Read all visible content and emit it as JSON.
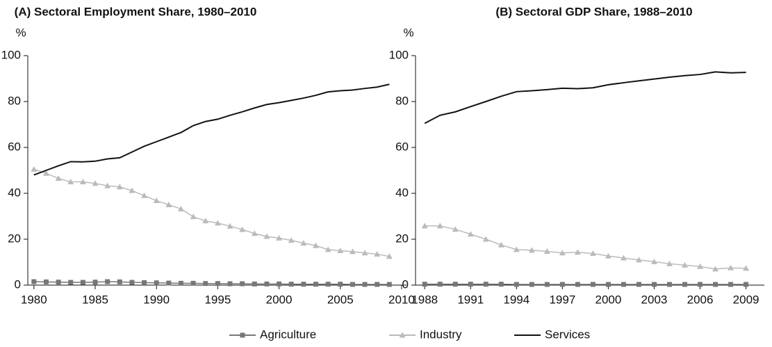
{
  "chart_data": [
    {
      "type": "line",
      "title": "(A) Sectoral Employment  Share, 1980–2010",
      "ylabel": "%",
      "x": [
        1980,
        1981,
        1982,
        1983,
        1984,
        1985,
        1986,
        1987,
        1988,
        1989,
        1990,
        1991,
        1992,
        1993,
        1994,
        1995,
        1996,
        1997,
        1998,
        1999,
        2000,
        2001,
        2002,
        2003,
        2004,
        2005,
        2006,
        2007,
        2008,
        2009
      ],
      "series": [
        {
          "name": "Agriculture",
          "color": "#777777",
          "marker": "square",
          "values": [
            1.5,
            1.4,
            1.3,
            1.2,
            1.2,
            1.3,
            1.5,
            1.4,
            1.2,
            1.1,
            1.0,
            0.9,
            0.8,
            0.8,
            0.7,
            0.7,
            0.6,
            0.6,
            0.5,
            0.5,
            0.5,
            0.4,
            0.4,
            0.4,
            0.4,
            0.4,
            0.3,
            0.3,
            0.3,
            0.3
          ]
        },
        {
          "name": "Industry",
          "color": "#bbbbbb",
          "marker": "triangle",
          "values": [
            50.5,
            48.7,
            46.5,
            45,
            45,
            44.3,
            43.3,
            42.8,
            41.2,
            39,
            36.8,
            35,
            33.2,
            29.8,
            28,
            27,
            25.7,
            24.2,
            22.5,
            21.2,
            20.5,
            19.5,
            18.3,
            17.2,
            15.5,
            15,
            14.6,
            14,
            13.5,
            12.5
          ]
        },
        {
          "name": "Services",
          "color": "#111111",
          "values": [
            48,
            50,
            52,
            53.8,
            53.7,
            54,
            55,
            55.5,
            58,
            60.5,
            62.5,
            64.5,
            66.5,
            69.5,
            71.3,
            72.3,
            74,
            75.5,
            77.2,
            78.7,
            79.5,
            80.5,
            81.5,
            82.7,
            84.2,
            84.7,
            85,
            85.7,
            86.3,
            87.5
          ]
        }
      ],
      "xlim": [
        1979.5,
        2010.4
      ],
      "xticks": [
        1980,
        1985,
        1990,
        1995,
        2000,
        2005,
        2010
      ],
      "ylim": [
        0,
        100
      ],
      "yticks": [
        0,
        20,
        40,
        60,
        80,
        100
      ]
    },
    {
      "type": "line",
      "title": "(B) Sectoral GDP Share, 1988–2010",
      "ylabel": "%",
      "x": [
        1988,
        1989,
        1990,
        1991,
        1992,
        1993,
        1994,
        1995,
        1996,
        1997,
        1998,
        1999,
        2000,
        2001,
        2002,
        2003,
        2004,
        2005,
        2006,
        2007,
        2008,
        2009
      ],
      "series": [
        {
          "name": "Agriculture",
          "color": "#777777",
          "marker": "square",
          "values": [
            0.4,
            0.4,
            0.4,
            0.4,
            0.4,
            0.4,
            0.3,
            0.3,
            0.3,
            0.3,
            0.3,
            0.3,
            0.3,
            0.3,
            0.3,
            0.3,
            0.3,
            0.3,
            0.3,
            0.3,
            0.3,
            0.3
          ]
        },
        {
          "name": "Industry",
          "color": "#bbbbbb",
          "marker": "triangle",
          "values": [
            25.8,
            25.8,
            24.3,
            22.2,
            20,
            17.5,
            15.5,
            15.2,
            14.7,
            14,
            14.3,
            13.8,
            12.7,
            11.8,
            11,
            10.2,
            9.3,
            8.7,
            8.1,
            7,
            7.5,
            7.3
          ]
        },
        {
          "name": "Services",
          "color": "#111111",
          "values": [
            70.5,
            74,
            75.5,
            77.8,
            80,
            82.3,
            84.3,
            84.7,
            85.2,
            85.8,
            85.6,
            86,
            87.3,
            88.2,
            89,
            89.8,
            90.6,
            91.3,
            91.8,
            92.9,
            92.5,
            92.7
          ]
        }
      ],
      "xlim": [
        1987.4,
        2010.2
      ],
      "xticks": [
        1988,
        1991,
        1994,
        1997,
        2000,
        2003,
        2006,
        2009
      ],
      "ylim": [
        0,
        100
      ],
      "yticks": [
        0,
        20,
        40,
        60,
        80,
        100
      ]
    }
  ]
}
